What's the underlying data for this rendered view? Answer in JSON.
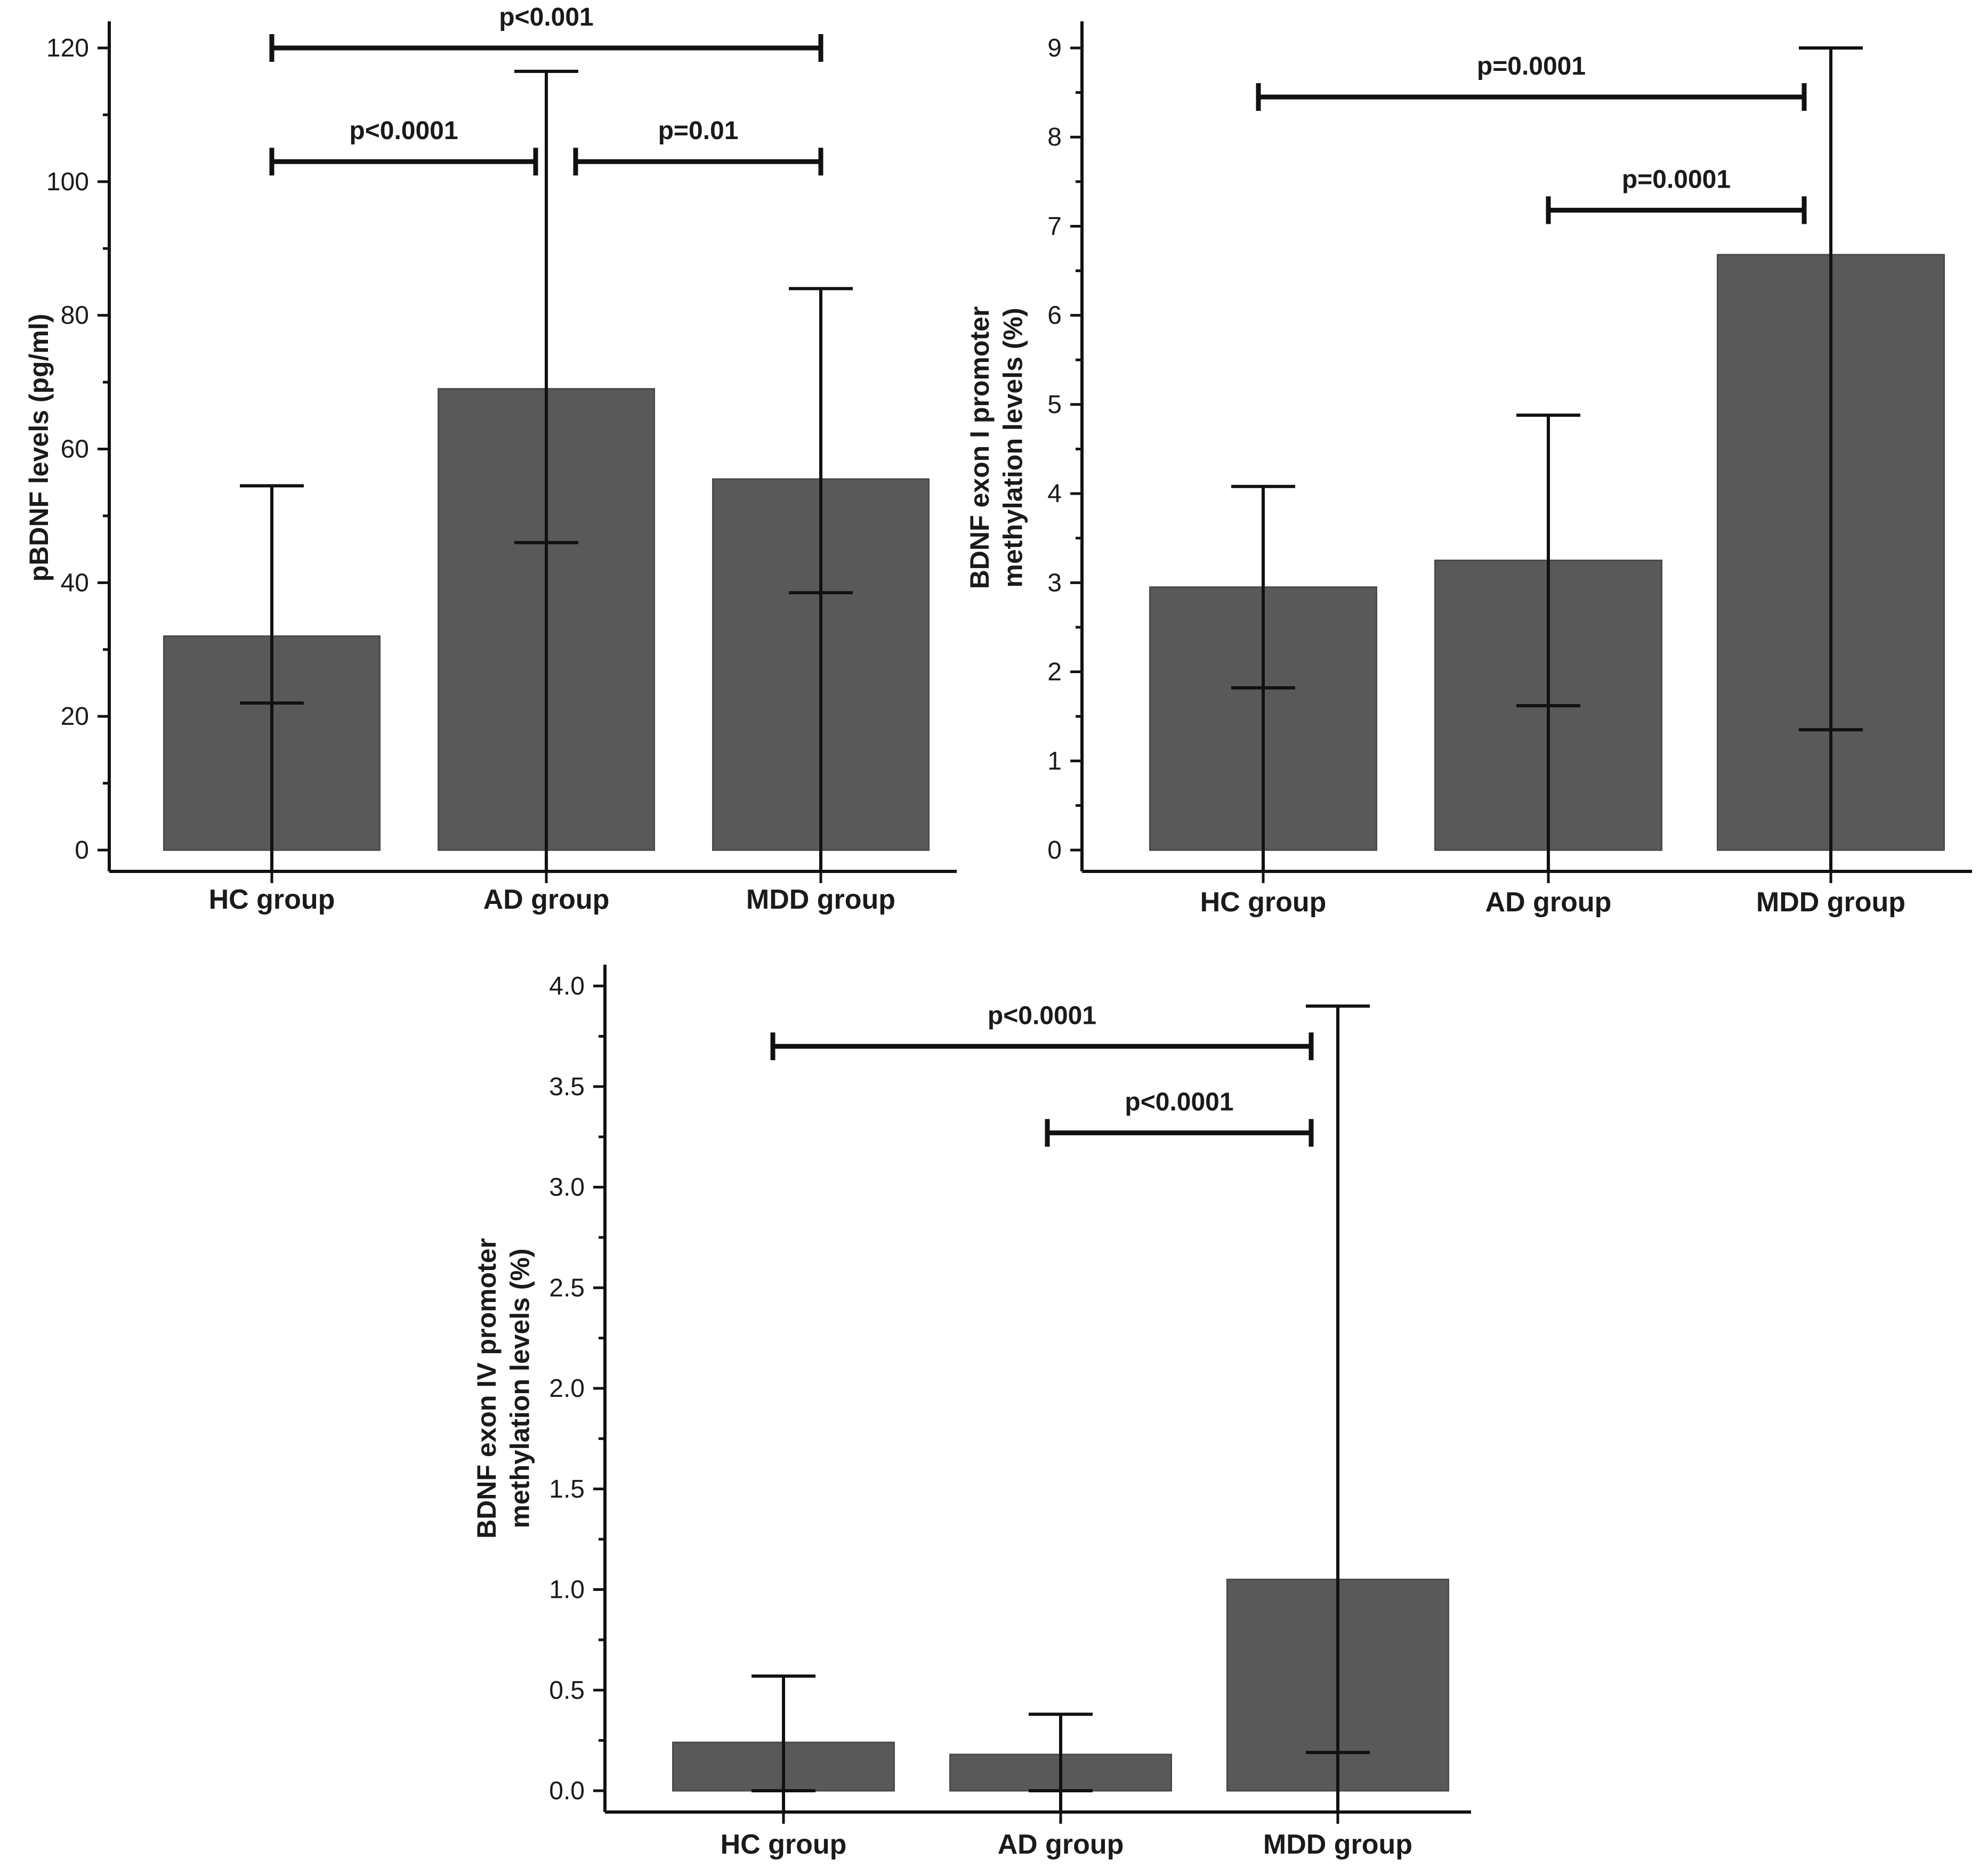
{
  "chart_data": [
    {
      "type": "bar",
      "title": "",
      "categories": [
        "HC group",
        "AD group",
        "MDD group"
      ],
      "values": [
        32,
        69,
        55.5
      ],
      "error_low": [
        22,
        46,
        38.5
      ],
      "error_high": [
        54.5,
        116.5,
        84
      ],
      "ylabel": "pBDNF levels (pg/ml)",
      "xlabel": "",
      "ylim": [
        0,
        120
      ],
      "yticks": [
        0,
        20,
        40,
        60,
        80,
        100,
        120
      ],
      "ytick_labels": [
        "0",
        "20",
        "40",
        "60",
        "80",
        "100",
        "120"
      ],
      "significance": [
        {
          "from": "HC group",
          "to": "MDD group",
          "label": "p<0.001",
          "y": 120
        },
        {
          "from": "HC group",
          "to": "AD group",
          "label": "p<0.0001",
          "y": 103
        },
        {
          "from": "AD group",
          "to": "MDD group",
          "label": "p=0.01",
          "y": 103
        }
      ]
    },
    {
      "type": "bar",
      "title": "",
      "categories": [
        "HC group",
        "AD group",
        "MDD group"
      ],
      "values": [
        2.95,
        3.25,
        6.68
      ],
      "error_low": [
        1.82,
        1.62,
        1.35
      ],
      "error_high": [
        4.08,
        4.88,
        9.0
      ],
      "ylabel": "BDNF exon I promoter methylation levels (%)",
      "xlabel": "",
      "ylim": [
        0,
        9
      ],
      "yticks": [
        0,
        1,
        2,
        3,
        4,
        5,
        6,
        7,
        8,
        9
      ],
      "ytick_labels": [
        "0",
        "1",
        "2",
        "3",
        "4",
        "5",
        "6",
        "7",
        "8",
        "9"
      ],
      "significance": [
        {
          "from": "HC group",
          "to": "MDD group",
          "label": "p=0.0001",
          "y": 8.45
        },
        {
          "from": "AD group",
          "to": "MDD group",
          "label": "p=0.0001",
          "y": 7.18
        }
      ]
    },
    {
      "type": "bar",
      "title": "",
      "categories": [
        "HC group",
        "AD group",
        "MDD group"
      ],
      "values": [
        0.24,
        0.18,
        1.05
      ],
      "error_low": [
        0.0,
        0.0,
        0.19
      ],
      "error_high": [
        0.57,
        0.38,
        3.9
      ],
      "ylabel": "BDNF exon IV promoter methylation levels (%)",
      "xlabel": "",
      "ylim": [
        0,
        4.0
      ],
      "yticks": [
        0,
        0.5,
        1.0,
        1.5,
        2.0,
        2.5,
        3.0,
        3.5,
        4.0
      ],
      "ytick_labels": [
        "0.0",
        "0.5",
        "1.0",
        "1.5",
        "2.0",
        "2.5",
        "3.0",
        "3.5",
        "4.0"
      ],
      "significance": [
        {
          "from": "HC group",
          "to": "MDD group",
          "label": "p<0.0001",
          "y": 3.7
        },
        {
          "from": "AD group",
          "to": "MDD group",
          "label": "p<0.0001",
          "y": 3.27
        }
      ]
    }
  ]
}
